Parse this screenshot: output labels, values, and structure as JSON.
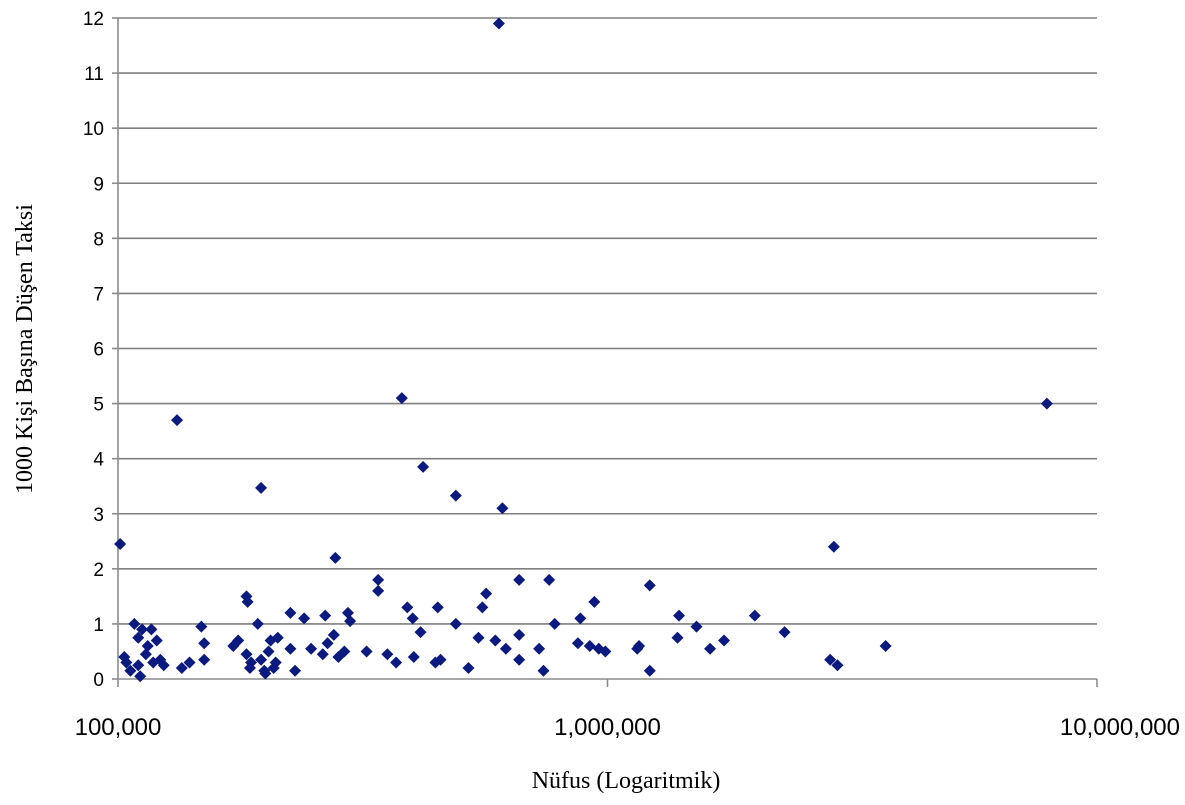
{
  "chart_data": {
    "type": "scatter",
    "title": "",
    "xlabel": "Nüfus (Logaritmik)",
    "ylabel": "1000 Kişi Başına Düşen Taksi",
    "x_scale": "log",
    "xlim": [
      100000,
      10000000
    ],
    "ylim": [
      0,
      12
    ],
    "x_ticks": [
      100000,
      1000000,
      10000000
    ],
    "x_tick_labels": [
      "100,000",
      "1,000,000",
      "10,000,000"
    ],
    "y_ticks": [
      0,
      1,
      2,
      3,
      4,
      5,
      6,
      7,
      8,
      9,
      10,
      11,
      12
    ],
    "y_tick_labels": [
      "0",
      "1",
      "2",
      "3",
      "4",
      "5",
      "6",
      "7",
      "8",
      "9",
      "10",
      "11",
      "12"
    ],
    "grid": "horizontal",
    "legend": "none",
    "marker": "diamond",
    "colors": {
      "marker": "#0b1a7e",
      "grid": "#7f7f7f",
      "axis": "#8c8c8c"
    },
    "series": [
      {
        "points": [
          [
            600000,
            11.9
          ],
          [
            7900000,
            5.0
          ],
          [
            380000,
            5.1
          ],
          [
            132000,
            4.7
          ],
          [
            420000,
            3.85
          ],
          [
            2900000,
            2.4
          ],
          [
            196000,
            3.47
          ],
          [
            490000,
            3.33
          ],
          [
            610000,
            3.1
          ],
          [
            101000,
            2.45
          ],
          [
            278000,
            2.2
          ],
          [
            660000,
            1.8
          ],
          [
            760000,
            1.8
          ],
          [
            340000,
            1.8
          ],
          [
            1220000,
            1.7
          ],
          [
            183000,
            1.5
          ],
          [
            565000,
            1.55
          ],
          [
            340000,
            1.6
          ],
          [
            555000,
            1.3
          ],
          [
            390000,
            1.3
          ],
          [
            450000,
            1.3
          ],
          [
            940000,
            1.4
          ],
          [
            184000,
            1.4
          ],
          [
            2000000,
            1.15
          ],
          [
            1400000,
            1.15
          ],
          [
            295000,
            1.2
          ],
          [
            265000,
            1.15
          ],
          [
            225000,
            1.2
          ],
          [
            880000,
            1.1
          ],
          [
            400000,
            1.1
          ],
          [
            240000,
            1.1
          ],
          [
            298000,
            1.05
          ],
          [
            108000,
            1.0
          ],
          [
            193000,
            1.0
          ],
          [
            490000,
            1.0
          ],
          [
            780000,
            1.0
          ],
          [
            112000,
            0.9
          ],
          [
            117000,
            0.9
          ],
          [
            148000,
            0.95
          ],
          [
            1520000,
            0.95
          ],
          [
            2300000,
            0.85
          ],
          [
            415000,
            0.85
          ],
          [
            660000,
            0.8
          ],
          [
            276000,
            0.8
          ],
          [
            110000,
            0.75
          ],
          [
            120000,
            0.7
          ],
          [
            176000,
            0.7
          ],
          [
            205000,
            0.7
          ],
          [
            212000,
            0.75
          ],
          [
            545000,
            0.75
          ],
          [
            1390000,
            0.75
          ],
          [
            1730000,
            0.7
          ],
          [
            590000,
            0.7
          ],
          [
            115000,
            0.6
          ],
          [
            150000,
            0.65
          ],
          [
            172000,
            0.6
          ],
          [
            268000,
            0.65
          ],
          [
            870000,
            0.65
          ],
          [
            920000,
            0.6
          ],
          [
            1160000,
            0.6
          ],
          [
            1150000,
            0.55
          ],
          [
            3700000,
            0.6
          ],
          [
            225000,
            0.55
          ],
          [
            248000,
            0.55
          ],
          [
            290000,
            0.5
          ],
          [
            620000,
            0.55
          ],
          [
            725000,
            0.55
          ],
          [
            960000,
            0.55
          ],
          [
            990000,
            0.5
          ],
          [
            1620000,
            0.55
          ],
          [
            114000,
            0.45
          ],
          [
            183000,
            0.45
          ],
          [
            203000,
            0.5
          ],
          [
            262000,
            0.45
          ],
          [
            322000,
            0.5
          ],
          [
            355000,
            0.45
          ],
          [
            103000,
            0.4
          ],
          [
            122000,
            0.35
          ],
          [
            150000,
            0.35
          ],
          [
            196000,
            0.35
          ],
          [
            282000,
            0.4
          ],
          [
            402000,
            0.4
          ],
          [
            456000,
            0.35
          ],
          [
            660000,
            0.35
          ],
          [
            2850000,
            0.35
          ],
          [
            104000,
            0.3
          ],
          [
            118000,
            0.3
          ],
          [
            140000,
            0.3
          ],
          [
            187000,
            0.3
          ],
          [
            210000,
            0.3
          ],
          [
            370000,
            0.3
          ],
          [
            445000,
            0.3
          ],
          [
            110000,
            0.25
          ],
          [
            124000,
            0.25
          ],
          [
            135000,
            0.2
          ],
          [
            2950000,
            0.25
          ],
          [
            186000,
            0.2
          ],
          [
            208000,
            0.2
          ],
          [
            520000,
            0.2
          ],
          [
            106000,
            0.15
          ],
          [
            199000,
            0.15
          ],
          [
            230000,
            0.15
          ],
          [
            740000,
            0.15
          ],
          [
            1220000,
            0.15
          ],
          [
            111000,
            0.05
          ],
          [
            200000,
            0.1
          ]
        ]
      }
    ]
  }
}
